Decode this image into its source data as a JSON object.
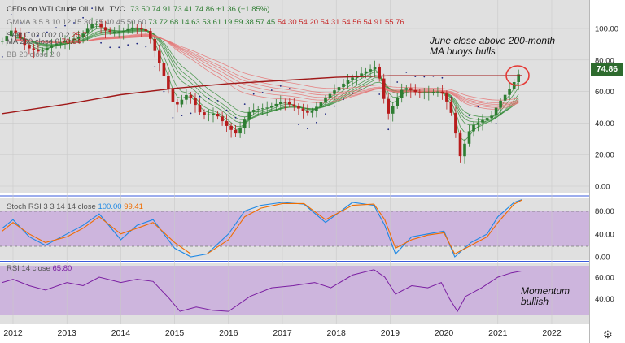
{
  "header": {
    "symbol": "CFDs on WTI Crude Oil",
    "interval": "1M",
    "source": "TVC",
    "ohlc": "73.50 74.91 73.41 74.86 +1.36 (+1.85%)",
    "gmma_label": "GMMA 3 5 8 10 12 15 30 35 40 45 50 60",
    "gmma_values": [
      "73.72",
      "68.14",
      "63.53",
      "61.19",
      "59.38",
      "57.45",
      "54.30",
      "54.20",
      "54.31",
      "54.56",
      "54.91",
      "55.76"
    ],
    "sar_label": "SAR 0.02 0.02 0.2",
    "sar_value": "25.7",
    "ma_label": "MA 200 close 0",
    "ma_value": "70.04",
    "bb_label": "BB 20 close 2 0"
  },
  "annotations": {
    "top_line1": "June close above 200-month",
    "top_line2": "MA buoys bulls",
    "bottom_line1": "Momentum",
    "bottom_line2": "bullish"
  },
  "stoch": {
    "label": "Stoch RSI 3 3 14 14 close",
    "k": "100.00",
    "d": "99.41"
  },
  "rsi": {
    "label": "RSI 14 close",
    "value": "65.80"
  },
  "price_tag": "74.86",
  "colors": {
    "up": "#2e7d32",
    "down": "#b71c1c",
    "ma200": "#a01818",
    "stochK": "#1e88e5",
    "stochD": "#ef6c00",
    "rsi": "#7b1fa2",
    "band": "#c7a7dc",
    "sar": "#1a237e"
  },
  "chart_data": [
    {
      "type": "line",
      "title": "CFDs on WTI Crude Oil 1M TVC",
      "x": [
        2012,
        2013,
        2014,
        2015,
        2016,
        2017,
        2018,
        2019,
        2020,
        2021,
        2022
      ],
      "x_tick_labels": [
        "2012",
        "2013",
        "2014",
        "2015",
        "2016",
        "2017",
        "2018",
        "2019",
        "2020",
        "2021",
        "2022"
      ],
      "y_ticks": [
        "0.00",
        "20.00",
        "40.00",
        "60.00",
        "80.00",
        "100.00"
      ],
      "ylim": [
        -5,
        115
      ],
      "series": [
        {
          "name": "close",
          "x": [
            2011.8,
            2012.0,
            2012.25,
            2012.5,
            2012.75,
            2013.0,
            2013.25,
            2013.5,
            2013.75,
            2014.0,
            2014.25,
            2014.5,
            2014.75,
            2015.0,
            2015.25,
            2015.5,
            2015.75,
            2016.0,
            2016.15,
            2016.4,
            2016.75,
            2017.0,
            2017.5,
            2017.9,
            2018.25,
            2018.5,
            2018.75,
            2018.95,
            2019.25,
            2019.5,
            2019.9,
            2020.0,
            2020.15,
            2020.3,
            2020.5,
            2020.9,
            2021.0,
            2021.25,
            2021.45
          ],
          "y": [
            92,
            100,
            88,
            85,
            90,
            92,
            95,
            104,
            98,
            98,
            101,
            98,
            75,
            50,
            59,
            45,
            46,
            37,
            33,
            48,
            50,
            54,
            46,
            59,
            68,
            72,
            76,
            45,
            63,
            59,
            60,
            58,
            45,
            19,
            38,
            45,
            52,
            63,
            74.86
          ]
        },
        {
          "name": "MA 200 close 0",
          "x": [
            2011.8,
            2013.0,
            2014.0,
            2015.0,
            2016.0,
            2017.0,
            2018.0,
            2019.0,
            2020.0,
            2021.0,
            2021.45
          ],
          "y": [
            46,
            52,
            58,
            62,
            65,
            67,
            69,
            70,
            70,
            70,
            70.04
          ]
        }
      ]
    },
    {
      "type": "line",
      "title": "Stoch RSI 3 3 14 14 close",
      "y_ticks": [
        "0.00",
        "40.00",
        "80.00"
      ],
      "ylim": [
        0,
        100
      ],
      "series": [
        {
          "name": "K",
          "x": [
            2011.8,
            2012.0,
            2012.3,
            2012.6,
            2013.0,
            2013.3,
            2013.6,
            2014.0,
            2014.3,
            2014.6,
            2015.0,
            2015.3,
            2015.6,
            2016.0,
            2016.3,
            2016.6,
            2017.0,
            2017.4,
            2017.8,
            2018.3,
            2018.7,
            2018.9,
            2019.1,
            2019.4,
            2019.7,
            2020.0,
            2020.2,
            2020.5,
            2020.8,
            2021.0,
            2021.3,
            2021.45
          ],
          "y": [
            50,
            65,
            35,
            20,
            40,
            55,
            75,
            30,
            55,
            65,
            15,
            0,
            5,
            40,
            80,
            90,
            95,
            92,
            60,
            95,
            90,
            55,
            5,
            35,
            40,
            45,
            0,
            25,
            40,
            70,
            95,
            100
          ]
        },
        {
          "name": "D",
          "x": [
            2011.8,
            2012.0,
            2012.3,
            2012.6,
            2013.0,
            2013.3,
            2013.6,
            2014.0,
            2014.3,
            2014.6,
            2015.0,
            2015.3,
            2015.6,
            2016.0,
            2016.3,
            2016.6,
            2017.0,
            2017.4,
            2017.8,
            2018.3,
            2018.7,
            2018.9,
            2019.1,
            2019.4,
            2019.7,
            2020.0,
            2020.2,
            2020.5,
            2020.8,
            2021.0,
            2021.3,
            2021.45
          ],
          "y": [
            45,
            60,
            40,
            25,
            35,
            50,
            70,
            40,
            50,
            60,
            25,
            5,
            5,
            30,
            70,
            85,
            93,
            93,
            65,
            90,
            92,
            65,
            15,
            30,
            38,
            42,
            5,
            20,
            35,
            60,
            92,
            99.41
          ]
        }
      ]
    },
    {
      "type": "line",
      "title": "RSI 14 close",
      "y_ticks": [
        "40.00",
        "60.00"
      ],
      "ylim": [
        22,
        75
      ],
      "series": [
        {
          "name": "RSI",
          "x": [
            2011.8,
            2012.0,
            2012.3,
            2012.6,
            2013.0,
            2013.3,
            2013.6,
            2014.0,
            2014.3,
            2014.6,
            2014.9,
            2015.1,
            2015.4,
            2015.7,
            2016.0,
            2016.4,
            2016.8,
            2017.2,
            2017.6,
            2017.9,
            2018.3,
            2018.7,
            2018.9,
            2019.1,
            2019.4,
            2019.7,
            2019.95,
            2020.1,
            2020.25,
            2020.4,
            2020.7,
            2021.0,
            2021.25,
            2021.45
          ],
          "y": [
            55,
            58,
            52,
            48,
            55,
            52,
            60,
            55,
            58,
            56,
            40,
            28,
            32,
            29,
            28,
            42,
            50,
            52,
            55,
            50,
            62,
            67,
            60,
            44,
            52,
            50,
            55,
            40,
            28,
            42,
            50,
            60,
            64,
            65.8
          ]
        }
      ]
    }
  ]
}
